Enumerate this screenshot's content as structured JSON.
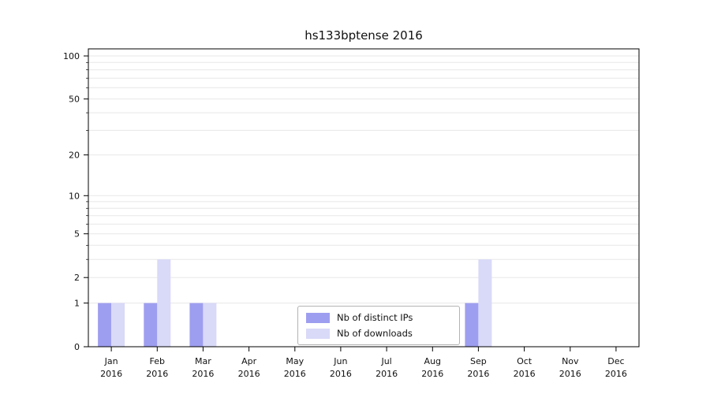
{
  "chart_data": {
    "type": "bar",
    "title": "hs133bptense 2016",
    "categories": [
      "Jan",
      "Feb",
      "Mar",
      "Apr",
      "May",
      "Jun",
      "Jul",
      "Aug",
      "Sep",
      "Oct",
      "Nov",
      "Dec"
    ],
    "category_sublabel": "2016",
    "series": [
      {
        "name": "Nb of distinct IPs",
        "color": "#9e9ef0",
        "values": [
          1,
          1,
          1,
          0,
          0,
          0,
          0,
          0,
          1,
          0,
          0,
          0
        ]
      },
      {
        "name": "Nb of downloads",
        "color": "#d9d9f8",
        "values": [
          1,
          3,
          1,
          0,
          0,
          0,
          0,
          0,
          3,
          0,
          0,
          0
        ]
      }
    ],
    "xlabel": "",
    "ylabel": "",
    "yticks": [
      0,
      1,
      2,
      5,
      10,
      20,
      50,
      100
    ],
    "ylim": [
      0,
      110
    ],
    "yscale": "log1p",
    "grid": "horizontal-minor",
    "grid_color": "#e7e7e7",
    "legend_position": "lower center inside"
  }
}
